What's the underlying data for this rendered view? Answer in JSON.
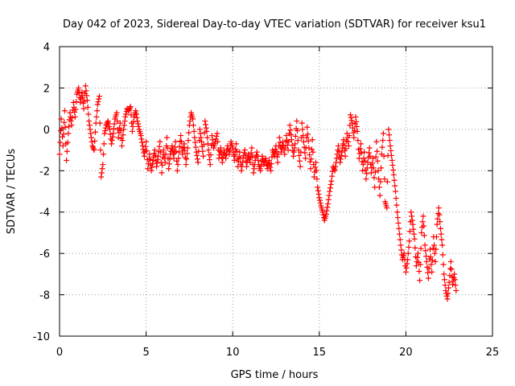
{
  "chart_data": {
    "type": "scatter",
    "title": "Day 042 of 2023, Sidereal Day-to-day VTEC variation (SDTVAR) for receiver ksu1",
    "xlabel": "GPS time / hours",
    "ylabel": "SDTVAR / TECUs",
    "xlim": [
      0,
      25
    ],
    "ylim": [
      -10,
      4
    ],
    "xticks": [
      0,
      5,
      10,
      15,
      20,
      25
    ],
    "yticks": [
      -10,
      -8,
      -6,
      -4,
      -2,
      0,
      2,
      4
    ],
    "grid": true,
    "marker": "+",
    "color": "#ff0000",
    "series": [
      {
        "name": "SDTVAR",
        "points": [
          [
            0.0,
            -1.2
          ],
          [
            0.1,
            0.5
          ],
          [
            0.2,
            -0.8
          ],
          [
            0.3,
            0.9
          ],
          [
            0.4,
            -1.5
          ],
          [
            0.5,
            -0.2
          ],
          [
            0.6,
            0.8
          ],
          [
            0.7,
            0.2
          ],
          [
            0.8,
            1.3
          ],
          [
            0.9,
            0.6
          ],
          [
            1.0,
            1.7
          ],
          [
            1.1,
            2.0
          ],
          [
            1.2,
            1.3
          ],
          [
            1.3,
            1.8
          ],
          [
            1.4,
            1.0
          ],
          [
            1.5,
            2.1
          ],
          [
            1.6,
            1.4
          ],
          [
            1.7,
            0.4
          ],
          [
            1.8,
            -0.2
          ],
          [
            1.9,
            -0.8
          ],
          [
            2.0,
            -1.0
          ],
          [
            2.1,
            0.3
          ],
          [
            2.2,
            1.2
          ],
          [
            2.3,
            1.6
          ],
          [
            2.4,
            -2.3
          ],
          [
            2.5,
            -1.7
          ],
          [
            2.6,
            -0.2
          ],
          [
            2.7,
            0.2
          ],
          [
            2.8,
            0.4
          ],
          [
            2.9,
            0.0
          ],
          [
            3.0,
            -0.7
          ],
          [
            3.1,
            -0.2
          ],
          [
            3.2,
            0.5
          ],
          [
            3.3,
            0.8
          ],
          [
            3.4,
            -0.4
          ],
          [
            3.5,
            0.3
          ],
          [
            3.6,
            -0.8
          ],
          [
            3.7,
            0.0
          ],
          [
            3.8,
            0.6
          ],
          [
            3.9,
            1.0
          ],
          [
            4.0,
            0.9
          ],
          [
            4.1,
            1.1
          ],
          [
            4.2,
            -0.1
          ],
          [
            4.3,
            0.6
          ],
          [
            4.4,
            0.9
          ],
          [
            4.5,
            0.4
          ],
          [
            4.6,
            0.0
          ],
          [
            4.7,
            -0.3
          ],
          [
            4.8,
            -0.8
          ],
          [
            4.9,
            -1.3
          ],
          [
            5.0,
            -0.6
          ],
          [
            5.1,
            -1.9
          ],
          [
            5.2,
            -1.2
          ],
          [
            5.3,
            -2.0
          ],
          [
            5.4,
            -1.5
          ],
          [
            5.5,
            -1.0
          ],
          [
            5.6,
            -1.8
          ],
          [
            5.7,
            -1.3
          ],
          [
            5.8,
            -0.6
          ],
          [
            5.9,
            -2.1
          ],
          [
            6.0,
            -1.0
          ],
          [
            6.1,
            -1.6
          ],
          [
            6.2,
            -0.4
          ],
          [
            6.3,
            -1.9
          ],
          [
            6.4,
            -1.2
          ],
          [
            6.5,
            -0.8
          ],
          [
            6.6,
            -1.4
          ],
          [
            6.7,
            -0.6
          ],
          [
            6.8,
            -2.0
          ],
          [
            6.9,
            -1.1
          ],
          [
            7.0,
            -0.3
          ],
          [
            7.1,
            -1.2
          ],
          [
            7.2,
            -0.7
          ],
          [
            7.3,
            -1.7
          ],
          [
            7.4,
            -0.9
          ],
          [
            7.5,
            0.2
          ],
          [
            7.6,
            0.8
          ],
          [
            7.7,
            0.5
          ],
          [
            7.8,
            -0.4
          ],
          [
            7.9,
            -1.1
          ],
          [
            8.0,
            -1.6
          ],
          [
            8.1,
            0.0
          ],
          [
            8.2,
            -0.6
          ],
          [
            8.3,
            -1.3
          ],
          [
            8.4,
            0.4
          ],
          [
            8.5,
            -0.1
          ],
          [
            8.6,
            -1.0
          ],
          [
            8.7,
            -1.7
          ],
          [
            8.8,
            -0.3
          ],
          [
            8.9,
            -0.9
          ],
          [
            9.0,
            -0.6
          ],
          [
            9.1,
            -0.2
          ],
          [
            9.2,
            -1.4
          ],
          [
            9.3,
            -0.9
          ],
          [
            9.4,
            -1.6
          ],
          [
            9.5,
            -1.0
          ],
          [
            9.6,
            -1.4
          ],
          [
            9.7,
            -0.8
          ],
          [
            9.8,
            -1.2
          ],
          [
            9.9,
            -0.6
          ],
          [
            10.0,
            -0.9
          ],
          [
            10.1,
            -1.5
          ],
          [
            10.2,
            -0.7
          ],
          [
            10.3,
            -1.8
          ],
          [
            10.4,
            -1.1
          ],
          [
            10.5,
            -2.0
          ],
          [
            10.6,
            -1.4
          ],
          [
            10.7,
            -1.0
          ],
          [
            10.8,
            -1.8
          ],
          [
            10.9,
            -1.2
          ],
          [
            11.0,
            -1.6
          ],
          [
            11.1,
            -0.9
          ],
          [
            11.2,
            -2.1
          ],
          [
            11.3,
            -1.5
          ],
          [
            11.4,
            -1.1
          ],
          [
            11.5,
            -1.7
          ],
          [
            11.6,
            -2.0
          ],
          [
            11.7,
            -1.3
          ],
          [
            11.8,
            -1.7
          ],
          [
            11.9,
            -1.4
          ],
          [
            12.0,
            -1.9
          ],
          [
            12.1,
            -1.5
          ],
          [
            12.2,
            -2.0
          ],
          [
            12.3,
            -1.0
          ],
          [
            12.4,
            -1.3
          ],
          [
            12.5,
            -0.8
          ],
          [
            12.6,
            -1.6
          ],
          [
            12.7,
            -0.4
          ],
          [
            12.8,
            -1.1
          ],
          [
            12.9,
            -0.6
          ],
          [
            13.0,
            -1.2
          ],
          [
            13.1,
            -0.3
          ],
          [
            13.2,
            -1.0
          ],
          [
            13.3,
            0.2
          ],
          [
            13.4,
            -0.5
          ],
          [
            13.5,
            -1.3
          ],
          [
            13.6,
            -0.7
          ],
          [
            13.7,
            0.4
          ],
          [
            13.8,
            -1.0
          ],
          [
            13.9,
            -1.8
          ],
          [
            14.0,
            0.3
          ],
          [
            14.1,
            -0.6
          ],
          [
            14.2,
            -1.4
          ],
          [
            14.3,
            0.1
          ],
          [
            14.4,
            -0.9
          ],
          [
            14.5,
            -1.9
          ],
          [
            14.6,
            -0.5
          ],
          [
            14.7,
            -2.3
          ],
          [
            14.8,
            -1.6
          ],
          [
            14.9,
            -2.8
          ],
          [
            15.0,
            -3.3
          ],
          [
            15.1,
            -3.7
          ],
          [
            15.2,
            -4.0
          ],
          [
            15.3,
            -4.4
          ],
          [
            15.4,
            -4.1
          ],
          [
            15.5,
            -3.6
          ],
          [
            15.6,
            -3.0
          ],
          [
            15.7,
            -2.5
          ],
          [
            15.8,
            -1.8
          ],
          [
            15.9,
            -2.0
          ],
          [
            16.0,
            -1.4
          ],
          [
            16.1,
            -0.8
          ],
          [
            16.2,
            -1.6
          ],
          [
            16.3,
            -1.1
          ],
          [
            16.4,
            -0.5
          ],
          [
            16.5,
            -1.3
          ],
          [
            16.6,
            -0.2
          ],
          [
            16.7,
            -0.8
          ],
          [
            16.8,
            0.7
          ],
          [
            16.9,
            0.3
          ],
          [
            17.0,
            -0.4
          ],
          [
            17.1,
            0.6
          ],
          [
            17.2,
            -0.1
          ],
          [
            17.3,
            -1.4
          ],
          [
            17.4,
            -0.7
          ],
          [
            17.5,
            -2.0
          ],
          [
            17.6,
            -1.1
          ],
          [
            17.7,
            -2.4
          ],
          [
            17.8,
            -1.6
          ],
          [
            17.9,
            -0.9
          ],
          [
            18.0,
            -2.1
          ],
          [
            18.1,
            -1.4
          ],
          [
            18.2,
            -2.8
          ],
          [
            18.3,
            -0.6
          ],
          [
            18.4,
            -2.0
          ],
          [
            18.5,
            -3.2
          ],
          [
            18.6,
            -1.2
          ],
          [
            18.7,
            -0.2
          ],
          [
            18.8,
            -3.5
          ],
          [
            18.9,
            -3.8
          ],
          [
            19.0,
            0.0
          ],
          [
            19.1,
            -0.8
          ],
          [
            19.2,
            -1.5
          ],
          [
            19.3,
            -2.2
          ],
          [
            19.4,
            -3.0
          ],
          [
            19.5,
            -4.0
          ],
          [
            19.6,
            -4.8
          ],
          [
            19.7,
            -5.6
          ],
          [
            19.8,
            -6.3
          ],
          [
            19.9,
            -6.0
          ],
          [
            20.0,
            -6.9
          ],
          [
            20.1,
            -6.3
          ],
          [
            20.2,
            -5.4
          ],
          [
            20.3,
            -4.0
          ],
          [
            20.4,
            -4.6
          ],
          [
            20.5,
            -5.3
          ],
          [
            20.6,
            -6.6
          ],
          [
            20.7,
            -6.0
          ],
          [
            20.8,
            -7.3
          ],
          [
            20.9,
            -5.0
          ],
          [
            21.0,
            -4.2
          ],
          [
            21.1,
            -5.6
          ],
          [
            21.2,
            -6.4
          ],
          [
            21.3,
            -7.2
          ],
          [
            21.4,
            -5.8
          ],
          [
            21.5,
            -6.9
          ],
          [
            21.6,
            -5.2
          ],
          [
            21.7,
            -6.4
          ],
          [
            21.8,
            -4.6
          ],
          [
            21.9,
            -3.8
          ],
          [
            22.0,
            -4.8
          ],
          [
            22.1,
            -5.6
          ],
          [
            22.2,
            -7.0
          ],
          [
            22.3,
            -7.8
          ],
          [
            22.4,
            -8.2
          ],
          [
            22.5,
            -7.4
          ],
          [
            22.6,
            -6.4
          ],
          [
            22.7,
            -7.5
          ],
          [
            22.8,
            -7.0
          ],
          [
            22.9,
            -7.8
          ]
        ]
      }
    ]
  }
}
